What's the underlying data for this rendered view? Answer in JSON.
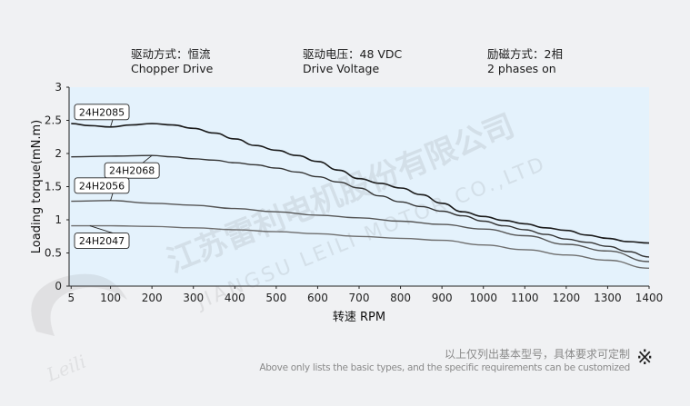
{
  "conditions": [
    {
      "cn": "驱动方式：恒流",
      "en": "Chopper Drive"
    },
    {
      "cn": "驱动电压：48 VDC",
      "en": "Drive Voltage"
    },
    {
      "cn": "励磁方式：2相",
      "en": "2 phases on"
    }
  ],
  "footer": {
    "note_cn": "以上仅列出基本型号，具体要求可定制",
    "note_en": "Above only lists the basic types, and the specific requirements can be customized",
    "mark": "※"
  },
  "watermark": {
    "company_cn": "江苏雷利电机股份有限公司",
    "company_en": "JIANGSU LEILI MOTOR CO.,LTD",
    "brand": "Leili"
  },
  "colors": {
    "plot_bg": "#e4f2fc",
    "page_bg": "#f0f1f3",
    "series": [
      "#1a1a1a",
      "#333333",
      "#555555",
      "#6e6e6e"
    ]
  },
  "chart_data": {
    "type": "line",
    "xlabel": "转速 RPM",
    "ylabel": "Loading torque(mN.m)",
    "xlim": [
      0,
      1400
    ],
    "ylim": [
      0,
      3
    ],
    "xticks": [
      5,
      100,
      200,
      300,
      400,
      500,
      600,
      700,
      800,
      900,
      1000,
      1100,
      1200,
      1300,
      1400
    ],
    "yticks": [
      0,
      0.5,
      1,
      1.5,
      2,
      2.5,
      3
    ],
    "grid": false,
    "series": [
      {
        "name": "24H2085",
        "x": [
          5,
          50,
          100,
          150,
          200,
          250,
          300,
          350,
          400,
          450,
          500,
          550,
          600,
          650,
          700,
          750,
          800,
          850,
          900,
          950,
          1000,
          1050,
          1100,
          1150,
          1200,
          1250,
          1300,
          1350,
          1400
        ],
        "y": [
          2.45,
          2.42,
          2.4,
          2.43,
          2.45,
          2.43,
          2.38,
          2.31,
          2.22,
          2.12,
          2.05,
          1.97,
          1.88,
          1.75,
          1.62,
          1.55,
          1.48,
          1.38,
          1.25,
          1.12,
          1.05,
          0.99,
          0.94,
          0.88,
          0.84,
          0.77,
          0.72,
          0.67,
          0.65
        ]
      },
      {
        "name": "24H2068",
        "x": [
          5,
          100,
          200,
          250,
          300,
          350,
          400,
          450,
          500,
          550,
          600,
          650,
          700,
          750,
          800,
          850,
          900,
          950,
          1000,
          1050,
          1100,
          1150,
          1200,
          1250,
          1300,
          1350,
          1400
        ],
        "y": [
          1.95,
          1.96,
          1.97,
          1.95,
          1.92,
          1.9,
          1.86,
          1.83,
          1.78,
          1.72,
          1.65,
          1.57,
          1.48,
          1.36,
          1.27,
          1.2,
          1.13,
          1.06,
          0.98,
          0.91,
          0.85,
          0.78,
          0.71,
          0.66,
          0.6,
          0.52,
          0.44
        ]
      },
      {
        "name": "24H2056",
        "x": [
          5,
          100,
          200,
          300,
          400,
          500,
          600,
          700,
          800,
          900,
          1000,
          1100,
          1200,
          1300,
          1400
        ],
        "y": [
          1.28,
          1.29,
          1.25,
          1.22,
          1.17,
          1.12,
          1.07,
          1.03,
          0.98,
          0.93,
          0.86,
          0.76,
          0.63,
          0.53,
          0.37
        ]
      },
      {
        "name": "24H2047",
        "x": [
          5,
          100,
          200,
          300,
          400,
          500,
          600,
          700,
          800,
          900,
          1000,
          1100,
          1200,
          1300,
          1400
        ],
        "y": [
          0.91,
          0.91,
          0.9,
          0.88,
          0.85,
          0.82,
          0.79,
          0.75,
          0.72,
          0.69,
          0.62,
          0.55,
          0.47,
          0.39,
          0.27
        ]
      }
    ],
    "callouts": [
      {
        "series": "24H2085",
        "anchor_x": 100,
        "anchor_y": 2.4,
        "side": "above-left"
      },
      {
        "series": "24H2068",
        "anchor_x": 200,
        "anchor_y": 1.97,
        "side": "below-left"
      },
      {
        "series": "24H2056",
        "anchor_x": 100,
        "anchor_y": 1.29,
        "side": "above-left"
      },
      {
        "series": "24H2047",
        "anchor_x": 50,
        "anchor_y": 0.91,
        "side": "below-left"
      }
    ]
  }
}
